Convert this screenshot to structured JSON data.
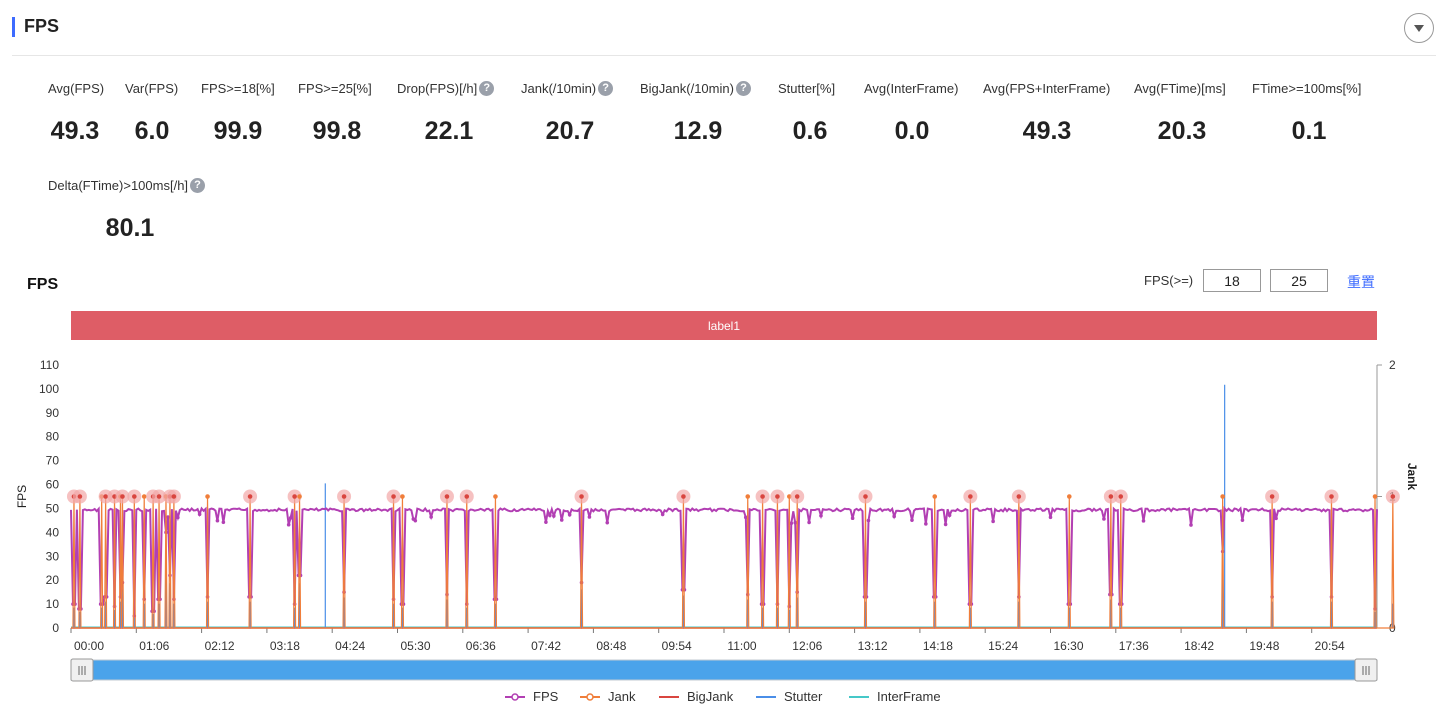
{
  "header": {
    "title": "FPS"
  },
  "metrics": [
    {
      "label": "Avg(FPS)",
      "value": "49.3",
      "help": false
    },
    {
      "label": "Var(FPS)",
      "value": "6.0",
      "help": false
    },
    {
      "label": "FPS>=18[%]",
      "value": "99.9",
      "help": false
    },
    {
      "label": "FPS>=25[%]",
      "value": "99.8",
      "help": false
    },
    {
      "label": "Drop(FPS)[/h]",
      "value": "22.1",
      "help": true
    },
    {
      "label": "Jank(/10min)",
      "value": "20.7",
      "help": true
    },
    {
      "label": "BigJank(/10min)",
      "value": "12.9",
      "help": true
    },
    {
      "label": "Stutter[%]",
      "value": "0.6",
      "help": false
    },
    {
      "label": "Avg(InterFrame)",
      "value": "0.0",
      "help": false
    },
    {
      "label": "Avg(FPS+InterFrame)",
      "value": "49.3",
      "help": false
    },
    {
      "label": "Avg(FTime)[ms]",
      "value": "20.3",
      "help": false
    },
    {
      "label": "FTime>=100ms[%]",
      "value": "0.1",
      "help": false
    },
    {
      "label": "Delta(FTime)>100ms[/h]",
      "value": "80.1",
      "help": true
    }
  ],
  "help_glyph": "?",
  "chart_section": {
    "title": "FPS",
    "threshold_label": "FPS(>=)",
    "threshold_1": "18",
    "threshold_2": "25",
    "reset_label": "重置",
    "band_label": "label1"
  },
  "colors": {
    "fps": "#b23fb3",
    "jank": "#f07e3a",
    "bigjank": "#d9453f",
    "stutter": "#4a8ee8",
    "interframe": "#45c8c8",
    "band": "#de5d66",
    "accent": "#3d6bff",
    "slider": "#4aa3ea"
  },
  "chart_data": {
    "type": "line",
    "ylabel": "FPS",
    "y2label": "Jank",
    "ylim": [
      0,
      110
    ],
    "y_ticks": [
      0,
      10,
      20,
      30,
      40,
      50,
      60,
      70,
      80,
      90,
      100,
      110
    ],
    "y2lim": [
      0,
      2
    ],
    "y2_ticks": [
      0,
      1,
      2
    ],
    "x_tick_labels": [
      "00:00",
      "01:06",
      "02:12",
      "03:18",
      "04:24",
      "05:30",
      "06:36",
      "07:42",
      "08:48",
      "09:54",
      "11:00",
      "12:06",
      "13:12",
      "14:18",
      "15:24",
      "16:30",
      "17:36",
      "18:42",
      "19:48",
      "20:54"
    ],
    "x_tick_seconds": [
      0,
      66,
      132,
      198,
      264,
      330,
      396,
      462,
      528,
      594,
      660,
      726,
      792,
      858,
      924,
      990,
      1056,
      1122,
      1188,
      1254
    ],
    "x_range_seconds": [
      0,
      1320
    ],
    "legend": [
      "FPS",
      "Jank",
      "BigJank",
      "Stutter",
      "InterFrame"
    ],
    "legend_position": "bottom",
    "fps_baseline": 50,
    "jank_events": [
      {
        "t": 3,
        "fps": 10
      },
      {
        "t": 9,
        "fps": 8
      },
      {
        "t": 31,
        "fps": 10
      },
      {
        "t": 35,
        "fps": 13
      },
      {
        "t": 44,
        "fps": 9
      },
      {
        "t": 50,
        "fps": 13
      },
      {
        "t": 52,
        "fps": 19
      },
      {
        "t": 64,
        "fps": 5
      },
      {
        "t": 74,
        "fps": 12
      },
      {
        "t": 83,
        "fps": 7
      },
      {
        "t": 89,
        "fps": 12
      },
      {
        "t": 96,
        "fps": 40
      },
      {
        "t": 100,
        "fps": 22
      },
      {
        "t": 104,
        "fps": 12
      },
      {
        "t": 138,
        "fps": 13
      },
      {
        "t": 181,
        "fps": 13
      },
      {
        "t": 226,
        "fps": 10
      },
      {
        "t": 231,
        "fps": 22
      },
      {
        "t": 276,
        "fps": 15
      },
      {
        "t": 326,
        "fps": 12
      },
      {
        "t": 335,
        "fps": 10
      },
      {
        "t": 380,
        "fps": 14
      },
      {
        "t": 400,
        "fps": 10
      },
      {
        "t": 429,
        "fps": 12
      },
      {
        "t": 516,
        "fps": 19
      },
      {
        "t": 619,
        "fps": 16
      },
      {
        "t": 684,
        "fps": 14
      },
      {
        "t": 699,
        "fps": 10
      },
      {
        "t": 714,
        "fps": 10
      },
      {
        "t": 726,
        "fps": 9
      },
      {
        "t": 734,
        "fps": 15
      },
      {
        "t": 803,
        "fps": 13
      },
      {
        "t": 873,
        "fps": 13
      },
      {
        "t": 909,
        "fps": 10
      },
      {
        "t": 958,
        "fps": 13
      },
      {
        "t": 1009,
        "fps": 10
      },
      {
        "t": 1051,
        "fps": 14
      },
      {
        "t": 1061,
        "fps": 10
      },
      {
        "t": 1164,
        "fps": 32
      },
      {
        "t": 1214,
        "fps": 13
      },
      {
        "t": 1274,
        "fps": 13
      },
      {
        "t": 1318,
        "fps": 8
      },
      {
        "t": 1336,
        "fps": 12
      }
    ],
    "stutter_peaks": [
      {
        "t": 255,
        "value": 1.1
      },
      {
        "t": 1164,
        "value": 1.85
      }
    ]
  }
}
